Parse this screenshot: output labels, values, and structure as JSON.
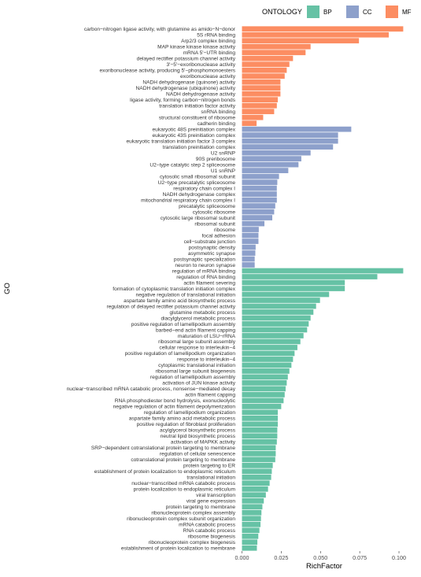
{
  "chart_data": {
    "type": "bar",
    "orientation": "horizontal",
    "xlabel": "RichFactor",
    "ylabel": "GO",
    "xlim": [
      0,
      0.105
    ],
    "xticks": [
      "0.000",
      "0.025",
      "0.050",
      "0.075",
      "0.100"
    ],
    "legend": {
      "title": "ONTOLOGY",
      "placement": "top-right",
      "entries": [
        {
          "name": "BP",
          "color": "#66C2A5"
        },
        {
          "name": "CC",
          "color": "#8DA0CB"
        },
        {
          "name": "MF",
          "color": "#FC8D62"
        }
      ]
    },
    "bars": [
      {
        "label": "carbon−nitrogen ligase activity, with glutamine as amido−N−donor",
        "value": 0.1027,
        "group": "MF"
      },
      {
        "label": "5S rRNA binding",
        "value": 0.0935,
        "group": "MF"
      },
      {
        "label": "Arp2/3 complex binding",
        "value": 0.0745,
        "group": "MF"
      },
      {
        "label": "MAP kinase kinase kinase activity",
        "value": 0.0437,
        "group": "MF"
      },
      {
        "label": "mRNA 5'−UTR binding",
        "value": 0.0405,
        "group": "MF"
      },
      {
        "label": "delayed rectifier potassium channel activity",
        "value": 0.0325,
        "group": "MF"
      },
      {
        "label": "3'−5'−exoribonuclease activity",
        "value": 0.0302,
        "group": "MF"
      },
      {
        "label": "exoribonuclease activity, producing 5'−phosphomonoesters",
        "value": 0.0285,
        "group": "MF"
      },
      {
        "label": "exoribonuclease activity",
        "value": 0.0272,
        "group": "MF"
      },
      {
        "label": "NADH dehydrogenase (quinone) activity",
        "value": 0.0245,
        "group": "MF"
      },
      {
        "label": "NADH dehydrogenase (ubiquinone) activity",
        "value": 0.0245,
        "group": "MF"
      },
      {
        "label": "NADH dehydrogenase activity",
        "value": 0.0245,
        "group": "MF"
      },
      {
        "label": "ligase activity, forming carbon−nitrogen bonds",
        "value": 0.0228,
        "group": "MF"
      },
      {
        "label": "translation initiation factor activity",
        "value": 0.0222,
        "group": "MF"
      },
      {
        "label": "snRNA binding",
        "value": 0.0205,
        "group": "MF"
      },
      {
        "label": "structural constituent of ribosome",
        "value": 0.0135,
        "group": "MF"
      },
      {
        "label": "cadherin binding",
        "value": 0.0093,
        "group": "MF"
      },
      {
        "label": "eukaryotic 48S preinitiation complex",
        "value": 0.0696,
        "group": "CC"
      },
      {
        "label": "eukaryotic 43S preinitiation complex",
        "value": 0.0612,
        "group": "CC"
      },
      {
        "label": "eukaryotic translation initiation factor 3 complex",
        "value": 0.0612,
        "group": "CC"
      },
      {
        "label": "translation preinitiation complex",
        "value": 0.058,
        "group": "CC"
      },
      {
        "label": "U2 snRNP",
        "value": 0.0437,
        "group": "CC"
      },
      {
        "label": "90S preribosome",
        "value": 0.0378,
        "group": "CC"
      },
      {
        "label": "U2−type catalytic step 2 spliceosome",
        "value": 0.036,
        "group": "CC"
      },
      {
        "label": "U1 snRNP",
        "value": 0.0295,
        "group": "CC"
      },
      {
        "label": "cytosolic small ribosomal subunit",
        "value": 0.0236,
        "group": "CC"
      },
      {
        "label": "U2−type precatalytic spliceosome",
        "value": 0.0225,
        "group": "CC"
      },
      {
        "label": "respiratory chain complex I",
        "value": 0.0222,
        "group": "CC"
      },
      {
        "label": "NADH dehydrogenase complex",
        "value": 0.0222,
        "group": "CC"
      },
      {
        "label": "mitochondrial respiratory chain complex I",
        "value": 0.0222,
        "group": "CC"
      },
      {
        "label": "precatalytic spliceosome",
        "value": 0.0212,
        "group": "CC"
      },
      {
        "label": "cytosolic ribosome",
        "value": 0.0205,
        "group": "CC"
      },
      {
        "label": "cytosolic large ribosomal subunit",
        "value": 0.0193,
        "group": "CC"
      },
      {
        "label": "ribosomal subunit",
        "value": 0.0143,
        "group": "CC"
      },
      {
        "label": "ribosome",
        "value": 0.0107,
        "group": "CC"
      },
      {
        "label": "focal adhesion",
        "value": 0.0105,
        "group": "CC"
      },
      {
        "label": "cell−substrate junction",
        "value": 0.0105,
        "group": "CC"
      },
      {
        "label": "postsynaptic density",
        "value": 0.0087,
        "group": "CC"
      },
      {
        "label": "asymmetric synapse",
        "value": 0.0085,
        "group": "CC"
      },
      {
        "label": "postsynaptic specialization",
        "value": 0.0081,
        "group": "CC"
      },
      {
        "label": "neuron to neuron synapse",
        "value": 0.0081,
        "group": "CC"
      },
      {
        "label": "regulation of mRNA binding",
        "value": 0.1027,
        "group": "BP"
      },
      {
        "label": "regulation of RNA binding",
        "value": 0.0862,
        "group": "BP"
      },
      {
        "label": "actin filament severing",
        "value": 0.0655,
        "group": "BP"
      },
      {
        "label": "formation of cytoplasmic translation initiation complex",
        "value": 0.0655,
        "group": "BP"
      },
      {
        "label": "negative regulation of translational initiation",
        "value": 0.0555,
        "group": "BP"
      },
      {
        "label": "aspartate family amino acid biosynthetic process",
        "value": 0.0497,
        "group": "BP"
      },
      {
        "label": "regulation of delayed rectifier potassium channel activity",
        "value": 0.0472,
        "group": "BP"
      },
      {
        "label": "glutamine metabolic process",
        "value": 0.0455,
        "group": "BP"
      },
      {
        "label": "diacylglycerol metabolic process",
        "value": 0.0437,
        "group": "BP"
      },
      {
        "label": "positive regulation of lamellipodium assembly",
        "value": 0.0425,
        "group": "BP"
      },
      {
        "label": "barbed−end actin filament capping",
        "value": 0.0415,
        "group": "BP"
      },
      {
        "label": "maturation of LSU−rRNA",
        "value": 0.0392,
        "group": "BP"
      },
      {
        "label": "ribosomal large subunit assembly",
        "value": 0.0372,
        "group": "BP"
      },
      {
        "label": "cellular response to interleukin−4",
        "value": 0.0353,
        "group": "BP"
      },
      {
        "label": "positive regulation of lamellipodium organization",
        "value": 0.0335,
        "group": "BP"
      },
      {
        "label": "response to interleukin−4",
        "value": 0.0325,
        "group": "BP"
      },
      {
        "label": "cytoplasmic translational initiation",
        "value": 0.0315,
        "group": "BP"
      },
      {
        "label": "ribosomal large subunit biogenesis",
        "value": 0.0302,
        "group": "BP"
      },
      {
        "label": "regulation of lamellipodium assembly",
        "value": 0.0292,
        "group": "BP"
      },
      {
        "label": "activation of JUN kinase activity",
        "value": 0.0285,
        "group": "BP"
      },
      {
        "label": "nuclear−transcribed mRNA catabolic process, nonsense−mediated decay",
        "value": 0.0278,
        "group": "BP"
      },
      {
        "label": "actin filament capping",
        "value": 0.0272,
        "group": "BP"
      },
      {
        "label": "RNA phosphodiester bond hydrolysis, exonucleolytic",
        "value": 0.0265,
        "group": "BP"
      },
      {
        "label": "negative regulation of actin filament depolymerization",
        "value": 0.025,
        "group": "BP"
      },
      {
        "label": "regulation of lamellipodium organization",
        "value": 0.0228,
        "group": "BP"
      },
      {
        "label": "aspartate family amino acid metabolic process",
        "value": 0.0228,
        "group": "BP"
      },
      {
        "label": "positive regulation of fibroblast proliferation",
        "value": 0.0228,
        "group": "BP"
      },
      {
        "label": "acylglycerol biosynthetic process",
        "value": 0.0225,
        "group": "BP"
      },
      {
        "label": "neutral lipid biosynthetic process",
        "value": 0.0225,
        "group": "BP"
      },
      {
        "label": "activation of MAPKK activity",
        "value": 0.0222,
        "group": "BP"
      },
      {
        "label": "SRP−dependent cotranslational protein targeting to membrane",
        "value": 0.0215,
        "group": "BP"
      },
      {
        "label": "regulation of cellular senescence",
        "value": 0.0215,
        "group": "BP"
      },
      {
        "label": "cotranslational protein targeting to membrane",
        "value": 0.0212,
        "group": "BP"
      },
      {
        "label": "protein targeting to ER",
        "value": 0.0196,
        "group": "BP"
      },
      {
        "label": "establishment of protein localization to endoplasmic reticulum",
        "value": 0.019,
        "group": "BP"
      },
      {
        "label": "translational initiation",
        "value": 0.0186,
        "group": "BP"
      },
      {
        "label": "nuclear−transcribed mRNA catabolic process",
        "value": 0.0176,
        "group": "BP"
      },
      {
        "label": "protein localization to endoplasmic reticulum",
        "value": 0.0166,
        "group": "BP"
      },
      {
        "label": "viral transcription",
        "value": 0.0152,
        "group": "BP"
      },
      {
        "label": "viral gene expression",
        "value": 0.0139,
        "group": "BP"
      },
      {
        "label": "protein targeting to membrane",
        "value": 0.013,
        "group": "BP"
      },
      {
        "label": "ribonucleoprotein complex assembly",
        "value": 0.0124,
        "group": "BP"
      },
      {
        "label": "ribonucleoprotein complex subunit organization",
        "value": 0.0121,
        "group": "BP"
      },
      {
        "label": "mRNA catabolic process",
        "value": 0.0118,
        "group": "BP"
      },
      {
        "label": "RNA catabolic process",
        "value": 0.0111,
        "group": "BP"
      },
      {
        "label": "ribosome biogenesis",
        "value": 0.0104,
        "group": "BP"
      },
      {
        "label": "ribonucleoprotein complex biogenesis",
        "value": 0.0098,
        "group": "BP"
      },
      {
        "label": "establishment of protein localization to membrane",
        "value": 0.0095,
        "group": "BP"
      }
    ]
  }
}
